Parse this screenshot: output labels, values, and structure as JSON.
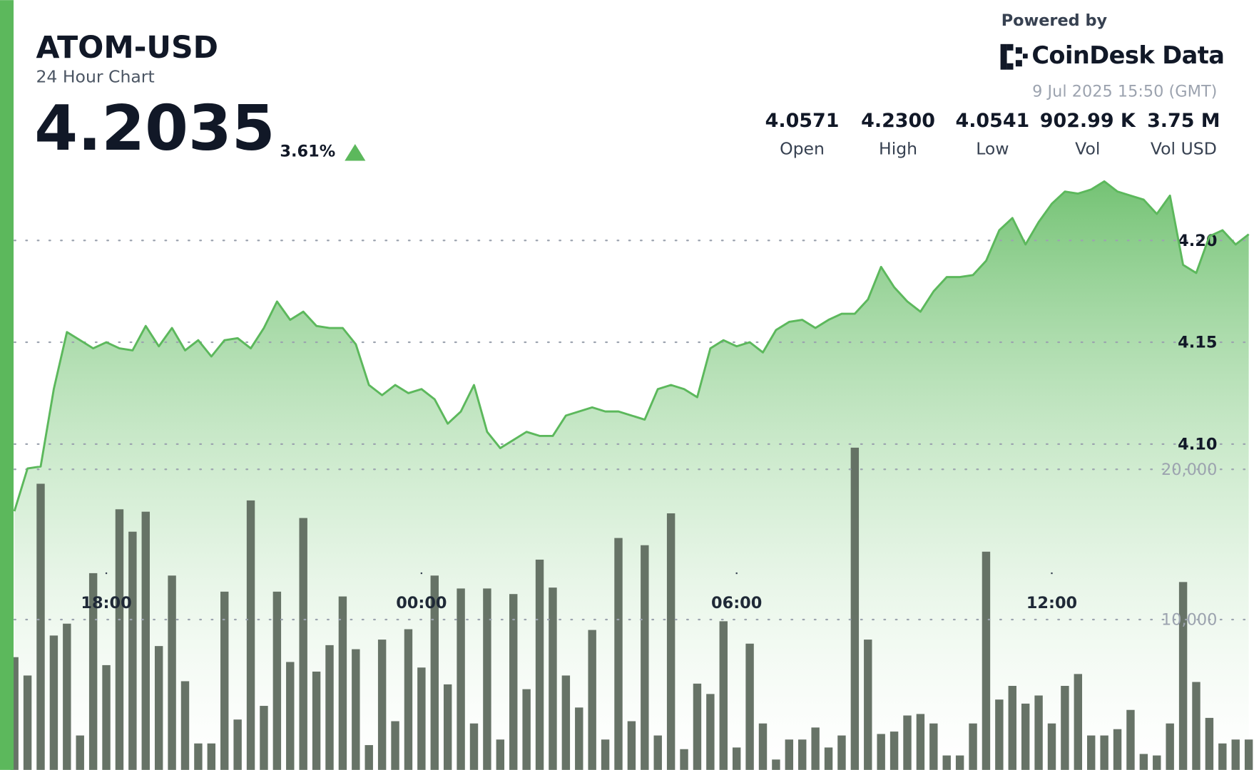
{
  "header": {
    "price": "4.2035",
    "change": "3.61%",
    "powered_by": "Powered by",
    "brand": "CoinDesk Data",
    "timestamp": "9 Jul 2025 15:50 (GMT)",
    "stats": [
      {
        "value": "4.0571",
        "label": "Open"
      },
      {
        "value": "4.2300",
        "label": "High"
      },
      {
        "value": "4.0541",
        "label": "Low"
      },
      {
        "value": "902.99 K",
        "label": "Vol"
      },
      {
        "value": "3.75 M",
        "label": "Vol USD"
      }
    ]
  },
  "chart_data": {
    "type": "line",
    "title": "ATOM-USD",
    "subtitle": "24 Hour Chart",
    "x": [
      16.25,
      16.5,
      16.75,
      17,
      17.25,
      17.5,
      17.75,
      18,
      18.25,
      18.5,
      18.75,
      19,
      19.25,
      19.5,
      19.75,
      20,
      20.25,
      20.5,
      20.75,
      21,
      21.25,
      21.5,
      21.75,
      22,
      22.25,
      22.5,
      22.75,
      23,
      23.25,
      23.5,
      23.75,
      24,
      24.25,
      24.5,
      24.75,
      25,
      25.25,
      25.5,
      25.75,
      26,
      26.25,
      26.5,
      26.75,
      27,
      27.25,
      27.5,
      27.75,
      28,
      28.25,
      28.5,
      28.75,
      29,
      29.25,
      29.5,
      29.75,
      30,
      30.25,
      30.5,
      30.75,
      31,
      31.25,
      31.5,
      31.75,
      32,
      32.25,
      32.5,
      32.75,
      33,
      33.25,
      33.5,
      33.75,
      34,
      34.25,
      34.5,
      34.75,
      35,
      35.25,
      35.5,
      35.75,
      36,
      36.25,
      36.5,
      36.75,
      37,
      37.25,
      37.5,
      37.75,
      38,
      38.25,
      38.5,
      38.75,
      39,
      39.25,
      39.5,
      39.75
    ],
    "series": [
      {
        "color": "#5cb85c",
        "values": [
          4.067,
          4.088,
          4.089,
          4.127,
          4.155,
          4.151,
          4.147,
          4.15,
          4.147,
          4.146,
          4.158,
          4.148,
          4.157,
          4.146,
          4.151,
          4.143,
          4.151,
          4.152,
          4.147,
          4.157,
          4.17,
          4.161,
          4.165,
          4.158,
          4.157,
          4.157,
          4.149,
          4.129,
          4.124,
          4.129,
          4.125,
          4.127,
          4.122,
          4.11,
          4.116,
          4.129,
          4.106,
          4.098,
          4.102,
          4.106,
          4.104,
          4.104,
          4.114,
          4.116,
          4.118,
          4.116,
          4.116,
          4.114,
          4.112,
          4.127,
          4.129,
          4.127,
          4.123,
          4.147,
          4.151,
          4.148,
          4.15,
          4.145,
          4.156,
          4.16,
          4.161,
          4.157,
          4.161,
          4.164,
          4.164,
          4.171,
          4.187,
          4.177,
          4.17,
          4.165,
          4.175,
          4.182,
          4.182,
          4.183,
          4.19,
          4.205,
          4.211,
          4.198,
          4.209,
          4.218,
          4.224,
          4.223,
          4.225,
          4.229,
          4.224,
          4.222,
          4.22,
          4.213,
          4.222,
          4.188,
          4.184,
          4.202,
          4.205,
          4.198,
          4.203
        ]
      },
      {
        "color": "#5f6b5f",
        "type": "bar",
        "axis": "y2",
        "values": [
          7500,
          6280,
          19040,
          8940,
          9730,
          2290,
          13090,
          6970,
          17340,
          15850,
          17180,
          8240,
          12930,
          5900,
          1760,
          1760,
          11860,
          3350,
          17930,
          4260,
          11860,
          7180,
          16760,
          6540,
          8300,
          11540,
          8030,
          1650,
          8670,
          3240,
          9360,
          6810,
          12930,
          5690,
          12070,
          3090,
          12070,
          2020,
          11700,
          5370,
          13990,
          12130,
          6280,
          4150,
          9310,
          2020,
          15430,
          3240,
          14950,
          2290,
          17070,
          1380,
          5740,
          5050,
          9890,
          1490,
          8400,
          3090,
          690,
          2020,
          2020,
          2820,
          1490,
          2290,
          21440,
          8670,
          2390,
          2550,
          3620,
          3720,
          3090,
          960,
          960,
          3090,
          14520,
          4680,
          5590,
          4410,
          4950,
          3090,
          5590,
          6380,
          2290,
          2290,
          2710,
          3990,
          1060,
          960,
          3090,
          12500,
          5850,
          3460,
          1760,
          2020,
          2020
        ]
      }
    ],
    "xlim": [
      16.25,
      39.85
    ],
    "xticks": [
      {
        "value": 18,
        "label": "18:00"
      },
      {
        "value": 24,
        "label": "00:00"
      },
      {
        "value": 30,
        "label": "06:00"
      },
      {
        "value": 36,
        "label": "12:00"
      }
    ],
    "ylim": [
      3.94,
      4.318
    ],
    "yticks": [
      {
        "value": 4.1,
        "label": "4.10"
      },
      {
        "value": 4.15,
        "label": "4.15"
      },
      {
        "value": 4.2,
        "label": "4.20"
      }
    ],
    "y2lim": [
      0,
      51220
    ],
    "y2ticks": [
      {
        "value": 10000,
        "label": "10,000"
      },
      {
        "value": 20000,
        "label": "20,000"
      }
    ],
    "grid": true
  }
}
